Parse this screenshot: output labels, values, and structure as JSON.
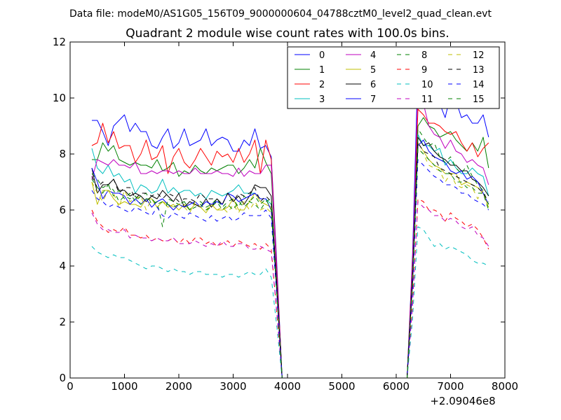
{
  "chart_data": {
    "type": "line",
    "suptitle": "Data file: modeM0/AS1G05_156T09_9000000604_04788cztM0_level2_quad_clean.evt",
    "title": "Quadrant 2 module wise count rates with 100.0s bins.",
    "xlabel": "",
    "ylabel": "",
    "x_offset_label": "+2.09046e8",
    "xlim": [
      0,
      8000
    ],
    "ylim": [
      0,
      12
    ],
    "xticks": [
      0,
      1000,
      2000,
      3000,
      4000,
      5000,
      6000,
      7000,
      8000
    ],
    "yticks": [
      0,
      2,
      4,
      6,
      8,
      10,
      12
    ],
    "grid": false,
    "legend_position": "top-right",
    "legend_columns": 4,
    "x": [
      400,
      500,
      600,
      700,
      800,
      900,
      1000,
      1100,
      1200,
      1300,
      1400,
      1500,
      1600,
      1700,
      1800,
      1900,
      2000,
      2100,
      2200,
      2300,
      2400,
      2500,
      2600,
      2700,
      2800,
      2900,
      3000,
      3100,
      3200,
      3300,
      3400,
      3500,
      3600,
      3700,
      3800,
      3900,
      4000,
      4500,
      5000,
      5500,
      6000,
      6200,
      6300,
      6400,
      6500,
      6600,
      6700,
      6800,
      6900,
      7000,
      7100,
      7200,
      7300,
      7400,
      7500,
      7600,
      7700
    ],
    "series": [
      {
        "name": "0",
        "color": "#0000ff",
        "dash": "solid",
        "values": [
          9.2,
          9.2,
          8.8,
          8.3,
          9.0,
          9.2,
          9.4,
          8.8,
          9.1,
          8.8,
          8.8,
          8.3,
          8.2,
          8.6,
          8.9,
          8.2,
          8.4,
          8.9,
          8.3,
          8.4,
          8.5,
          8.9,
          8.3,
          8.5,
          8.6,
          8.5,
          8.1,
          8.1,
          8.5,
          8.3,
          8.9,
          8.2,
          8.3,
          7.9,
          4.2,
          0,
          0,
          0,
          0,
          0,
          0,
          0,
          4.4,
          11.1,
          10.1,
          10.4,
          10.1,
          9.8,
          9.3,
          10.1,
          9.9,
          9.3,
          9.4,
          9.1,
          9.1,
          9.4,
          8.6
        ]
      },
      {
        "name": "1",
        "color": "#008000",
        "dash": "solid",
        "values": [
          7.8,
          7.8,
          8.4,
          8.1,
          8.3,
          7.8,
          7.7,
          7.6,
          7.7,
          7.6,
          7.6,
          7.5,
          7.8,
          7.4,
          7.5,
          7.7,
          7.2,
          7.4,
          7.3,
          7.6,
          7.4,
          7.3,
          7.5,
          7.4,
          7.5,
          7.6,
          7.6,
          7.3,
          7.5,
          7.8,
          7.5,
          8.2,
          7.7,
          7.3,
          3.9,
          0,
          0,
          0,
          0,
          0,
          0,
          0,
          4.0,
          9.0,
          9.3,
          9.0,
          8.9,
          8.6,
          8.7,
          8.8,
          8.5,
          8.3,
          8.1,
          8.4,
          8.1,
          8.6,
          7.5
        ]
      },
      {
        "name": "2",
        "color": "#ff0000",
        "dash": "solid",
        "values": [
          8.3,
          8.4,
          9.1,
          8.4,
          8.8,
          8.2,
          8.3,
          8.3,
          7.7,
          8.0,
          8.5,
          7.8,
          7.9,
          8.3,
          7.3,
          7.9,
          8.2,
          7.7,
          7.5,
          7.8,
          8.2,
          7.9,
          7.6,
          8.1,
          7.9,
          8.0,
          7.7,
          8.2,
          7.7,
          8.0,
          8.5,
          7.3,
          8.5,
          7.8,
          4.0,
          0,
          0,
          0,
          0,
          0,
          0,
          0,
          4.2,
          9.6,
          9.4,
          9.1,
          9.1,
          9.0,
          8.8,
          8.7,
          8.8,
          8.4,
          8.1,
          8.4,
          7.9,
          8.2,
          8.4
        ]
      },
      {
        "name": "3",
        "color": "#00bfbf",
        "dash": "solid",
        "values": [
          8.2,
          7.5,
          7.3,
          7.6,
          7.2,
          7.3,
          7.0,
          7.1,
          6.6,
          6.9,
          6.8,
          6.6,
          6.7,
          7.1,
          6.6,
          6.8,
          6.6,
          6.7,
          6.7,
          6.5,
          6.6,
          6.4,
          6.7,
          6.6,
          6.5,
          6.6,
          6.7,
          6.9,
          6.6,
          6.6,
          6.6,
          6.4,
          6.4,
          6.2,
          3.3,
          0,
          0,
          0,
          0,
          0,
          0,
          0,
          3.6,
          8.7,
          8.3,
          8.3,
          8.1,
          8.2,
          7.6,
          7.8,
          7.5,
          7.3,
          7.3,
          7.5,
          7.3,
          7.2,
          6.5
        ]
      },
      {
        "name": "4",
        "color": "#bf00bf",
        "dash": "solid",
        "values": [
          7.1,
          7.8,
          7.7,
          7.6,
          7.8,
          7.6,
          7.6,
          7.5,
          7.7,
          7.3,
          7.3,
          7.4,
          7.3,
          7.4,
          7.4,
          7.3,
          7.4,
          7.3,
          7.3,
          7.5,
          7.3,
          7.3,
          7.3,
          7.4,
          7.3,
          7.3,
          7.2,
          7.5,
          7.2,
          7.4,
          7.3,
          7.3,
          7.6,
          7.6,
          3.8,
          0,
          0,
          0,
          0,
          0,
          0,
          0,
          4.0,
          10.5,
          9.8,
          9.0,
          8.7,
          8.6,
          8.2,
          8.5,
          8.1,
          8.0,
          7.7,
          7.8,
          7.6,
          7.5,
          6.9
        ]
      },
      {
        "name": "5",
        "color": "#bfbf00",
        "dash": "solid",
        "values": [
          7.0,
          6.2,
          6.7,
          6.7,
          6.4,
          6.2,
          6.3,
          6.2,
          6.2,
          6.1,
          6.4,
          6.4,
          6.1,
          6.3,
          6.1,
          6.2,
          6.0,
          6.2,
          6.0,
          6.2,
          6.1,
          5.9,
          6.2,
          6.0,
          6.0,
          6.1,
          6.4,
          6.0,
          6.0,
          6.3,
          6.6,
          6.3,
          6.2,
          6.1,
          3.2,
          0,
          0,
          0,
          0,
          0,
          0,
          0,
          3.4,
          8.4,
          8.1,
          7.8,
          7.6,
          7.5,
          7.3,
          7.3,
          7.3,
          6.9,
          7.0,
          6.9,
          6.8,
          6.6,
          6.1
        ]
      },
      {
        "name": "6",
        "color": "#000000",
        "dash": "solid",
        "values": [
          7.5,
          6.6,
          6.9,
          6.9,
          7.1,
          6.7,
          6.7,
          6.5,
          6.6,
          6.5,
          6.3,
          6.5,
          6.4,
          6.7,
          6.5,
          6.3,
          6.6,
          6.1,
          6.3,
          6.2,
          6.1,
          6.4,
          6.1,
          6.4,
          6.2,
          6.6,
          6.3,
          6.5,
          6.2,
          6.5,
          6.9,
          6.8,
          6.8,
          6.5,
          3.4,
          0,
          0,
          0,
          0,
          0,
          0,
          0,
          3.6,
          8.6,
          8.3,
          8.4,
          8.1,
          7.9,
          7.8,
          7.6,
          7.6,
          7.4,
          7.4,
          7.1,
          7.0,
          6.8,
          6.5
        ]
      },
      {
        "name": "7",
        "color": "#0000ff",
        "dash": "solid",
        "values": [
          7.5,
          7.0,
          6.4,
          6.7,
          6.6,
          6.6,
          6.5,
          6.2,
          6.4,
          6.2,
          6.4,
          6.1,
          6.3,
          6.4,
          6.2,
          6.0,
          6.2,
          6.1,
          6.2,
          6.3,
          6.1,
          6.3,
          6.2,
          6.3,
          6.2,
          6.6,
          6.5,
          6.3,
          6.4,
          6.5,
          6.6,
          6.4,
          6.4,
          6.0,
          3.2,
          0,
          0,
          0,
          0,
          0,
          0,
          0,
          3.4,
          8.3,
          8.5,
          8.1,
          7.9,
          7.8,
          7.7,
          7.4,
          7.3,
          7.4,
          7.1,
          7.2,
          7.0,
          6.6,
          6.2
        ]
      },
      {
        "name": "8",
        "color": "#008000",
        "dash": "dashed",
        "values": [
          7.3,
          7.1,
          6.8,
          6.9,
          6.5,
          6.7,
          6.4,
          6.6,
          6.3,
          6.5,
          6.6,
          6.2,
          6.3,
          5.4,
          6.4,
          6.3,
          6.2,
          6.3,
          6.0,
          6.3,
          6.3,
          6.1,
          6.2,
          6.4,
          6.1,
          6.3,
          6.4,
          6.1,
          6.5,
          6.3,
          6.2,
          6.0,
          6.3,
          6.4,
          3.3,
          0,
          0,
          0,
          0,
          0,
          0,
          0,
          3.5,
          8.9,
          8.6,
          8.3,
          8.4,
          7.9,
          7.7,
          7.9,
          7.5,
          7.3,
          7.6,
          7.2,
          6.9,
          6.7,
          6.2
        ]
      },
      {
        "name": "9",
        "color": "#ff0000",
        "dash": "dashed",
        "values": [
          6.0,
          5.6,
          5.4,
          5.2,
          5.3,
          5.2,
          5.4,
          5.1,
          5.1,
          5.0,
          5.1,
          4.9,
          5.0,
          4.9,
          4.9,
          5.0,
          4.8,
          5.0,
          4.8,
          5.0,
          5.0,
          4.8,
          4.9,
          4.7,
          4.8,
          4.9,
          4.7,
          4.9,
          4.8,
          4.7,
          4.8,
          4.6,
          4.8,
          4.6,
          2.4,
          0,
          0,
          0,
          0,
          0,
          0,
          0,
          2.6,
          6.4,
          6.3,
          6.0,
          6.0,
          5.9,
          5.6,
          5.9,
          5.7,
          5.6,
          5.4,
          5.5,
          5.3,
          5.0,
          4.6
        ]
      },
      {
        "name": "10",
        "color": "#00bfbf",
        "dash": "dashed",
        "values": [
          4.7,
          4.5,
          4.4,
          4.3,
          4.4,
          4.3,
          4.3,
          4.2,
          4.1,
          4.0,
          3.9,
          4.0,
          4.0,
          3.9,
          3.8,
          3.9,
          3.8,
          3.8,
          3.7,
          3.8,
          3.8,
          3.7,
          3.7,
          3.7,
          3.6,
          3.7,
          3.7,
          3.6,
          3.7,
          3.8,
          3.7,
          3.7,
          3.9,
          3.6,
          1.9,
          0,
          0,
          0,
          0,
          0,
          0,
          0,
          2.1,
          5.4,
          5.3,
          5.0,
          4.7,
          4.8,
          4.6,
          4.7,
          4.6,
          4.5,
          4.4,
          4.2,
          4.1,
          4.1,
          4.0
        ]
      },
      {
        "name": "11",
        "color": "#bf00bf",
        "dash": "dashed",
        "values": [
          5.9,
          5.5,
          5.3,
          5.3,
          5.2,
          5.2,
          5.3,
          5.0,
          5.1,
          5.0,
          5.0,
          4.9,
          5.0,
          4.9,
          4.9,
          5.0,
          4.8,
          4.8,
          4.8,
          4.9,
          4.8,
          4.7,
          4.8,
          4.7,
          4.9,
          4.7,
          4.7,
          4.8,
          4.8,
          4.6,
          4.6,
          4.7,
          4.6,
          4.5,
          2.4,
          0,
          0,
          0,
          0,
          0,
          0,
          0,
          2.6,
          6.3,
          6.1,
          6.0,
          5.8,
          5.8,
          5.6,
          5.7,
          5.6,
          5.4,
          5.3,
          5.4,
          5.1,
          5.0,
          4.7
        ]
      },
      {
        "name": "12",
        "color": "#bfbf00",
        "dash": "dashed",
        "values": [
          7.0,
          6.6,
          6.3,
          6.7,
          6.6,
          6.1,
          6.7,
          6.3,
          6.4,
          6.5,
          6.0,
          6.4,
          6.1,
          6.3,
          6.2,
          6.1,
          6.2,
          6.1,
          5.9,
          6.3,
          6.1,
          6.0,
          6.2,
          6.0,
          6.1,
          5.9,
          6.2,
          5.9,
          6.3,
          6.0,
          6.3,
          6.0,
          6.1,
          5.9,
          3.1,
          0,
          0,
          0,
          0,
          0,
          0,
          0,
          3.3,
          8.2,
          8.0,
          7.6,
          7.5,
          7.4,
          7.0,
          7.3,
          6.9,
          6.8,
          6.9,
          6.8,
          6.4,
          6.7,
          6.0
        ]
      },
      {
        "name": "13",
        "color": "#000000",
        "dash": "dashed",
        "values": [
          7.2,
          6.8,
          7.0,
          6.9,
          7.1,
          6.6,
          6.8,
          6.8,
          6.4,
          6.6,
          6.6,
          6.5,
          6.6,
          6.4,
          6.6,
          6.5,
          6.3,
          6.4,
          6.4,
          6.3,
          6.6,
          6.4,
          6.4,
          6.4,
          6.2,
          6.6,
          6.3,
          6.6,
          6.5,
          6.6,
          6.8,
          6.3,
          6.5,
          6.3,
          3.3,
          0,
          0,
          0,
          0,
          0,
          0,
          0,
          3.5,
          8.4,
          8.1,
          8.0,
          7.9,
          7.5,
          7.4,
          7.3,
          7.2,
          7.1,
          7.0,
          6.9,
          6.8,
          6.6,
          6.3
        ]
      },
      {
        "name": "14",
        "color": "#0000ff",
        "dash": "dashed",
        "values": [
          6.7,
          6.4,
          6.3,
          6.1,
          6.2,
          6.1,
          6.0,
          5.9,
          6.1,
          6.0,
          5.9,
          5.8,
          6.1,
          5.8,
          5.7,
          5.9,
          5.8,
          5.7,
          5.9,
          5.8,
          5.7,
          5.6,
          5.8,
          5.6,
          5.7,
          5.8,
          5.6,
          5.7,
          5.9,
          5.8,
          5.8,
          5.8,
          6.0,
          5.7,
          3.0,
          0,
          0,
          0,
          0,
          0,
          0,
          0,
          3.2,
          7.8,
          7.6,
          7.4,
          7.2,
          7.1,
          6.9,
          6.9,
          6.8,
          6.6,
          6.6,
          6.4,
          6.3,
          6.2,
          6.0
        ]
      },
      {
        "name": "15",
        "color": "#008000",
        "dash": "dashed",
        "values": [
          7.1,
          6.8,
          6.6,
          6.9,
          6.7,
          6.3,
          6.5,
          6.4,
          6.5,
          6.2,
          6.4,
          6.4,
          6.2,
          6.3,
          6.2,
          6.1,
          6.2,
          6.3,
          6.0,
          6.1,
          6.2,
          6.0,
          6.1,
          6.3,
          6.0,
          6.2,
          6.0,
          6.3,
          6.1,
          6.3,
          6.5,
          6.2,
          6.4,
          6.0,
          3.1,
          0,
          0,
          0,
          0,
          0,
          0,
          0,
          3.3,
          8.2,
          8.0,
          7.8,
          7.6,
          7.4,
          7.3,
          7.3,
          7.0,
          7.0,
          6.8,
          6.8,
          6.6,
          6.6,
          6.0
        ]
      }
    ]
  }
}
